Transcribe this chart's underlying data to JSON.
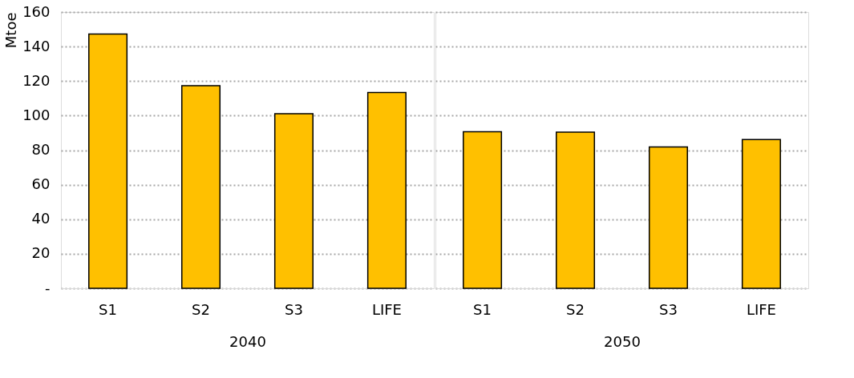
{
  "chart_data": [
    {
      "type": "bar",
      "categories": [
        "S1",
        "S2",
        "S3",
        "LIFE"
      ],
      "xlabel": "2040",
      "ylabel": "Mtoe",
      "series": [
        {
          "color": "#ffc000",
          "values": [
            147.3,
            117.3,
            101.1,
            113.4
          ]
        }
      ],
      "ylim": [
        0,
        160
      ],
      "yticks": [
        {
          "value": 0,
          "label": "-"
        },
        20,
        40,
        60,
        80,
        100,
        120,
        140,
        160
      ],
      "grid": "y"
    },
    {
      "type": "bar",
      "categories": [
        "S1",
        "S2",
        "S3",
        "LIFE"
      ],
      "xlabel": "2050",
      "series": [
        {
          "color": "#ffc000",
          "values": [
            90.7,
            90.4,
            81.9,
            86.1
          ]
        }
      ],
      "ylim": [
        0,
        160
      ],
      "yticks": [
        0,
        20,
        40,
        60,
        80,
        100,
        120,
        140,
        160
      ],
      "grid": "y",
      "tick_labels": "x"
    }
  ]
}
